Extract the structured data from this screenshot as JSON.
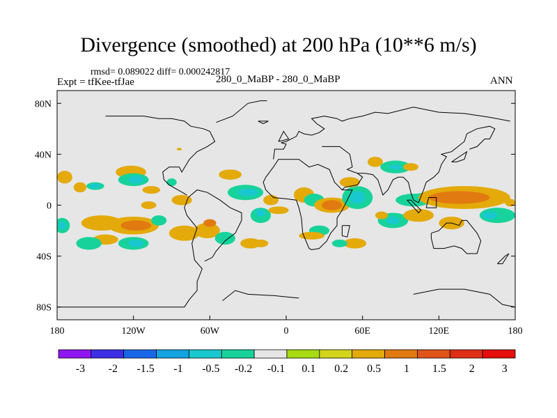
{
  "title": "Divergence (smoothed) at 200 hPa (10**6 m/s)",
  "stats": "rmsd= 0.089022  diff= 0.000242817",
  "expt": "Expt = tfKee-tfJae",
  "case": "280_0_MaBP - 280_0_MaBP",
  "season": "ANN",
  "colors": {
    "land_background": "#e6e6e6",
    "coastline": "#000000"
  },
  "chart_data": {
    "type": "heatmap",
    "projection": "cylindrical equidistant",
    "field": "divergence difference at 200 hPa",
    "xlim": [
      -180,
      180
    ],
    "ylim": [
      -90,
      90
    ],
    "x_ticks": [
      {
        "value": -180,
        "label": "180"
      },
      {
        "value": -120,
        "label": "120W"
      },
      {
        "value": -60,
        "label": "60W"
      },
      {
        "value": 0,
        "label": "0"
      },
      {
        "value": 60,
        "label": "60E"
      },
      {
        "value": 120,
        "label": "120E"
      },
      {
        "value": 180,
        "label": "180"
      }
    ],
    "y_ticks": [
      {
        "value": 80,
        "label": "80N"
      },
      {
        "value": 40,
        "label": "40N"
      },
      {
        "value": 0,
        "label": "0"
      },
      {
        "value": -40,
        "label": "40S"
      },
      {
        "value": -80,
        "label": "80S"
      }
    ],
    "colorbar": {
      "colors": [
        "#8f16f0",
        "#3e2ee6",
        "#1a66e8",
        "#13a3e0",
        "#19c8cf",
        "#17d39b",
        "#e6e6e6",
        "#a7db14",
        "#d4d41d",
        "#e3aa0a",
        "#e17a10",
        "#e0541a",
        "#df2f17",
        "#e60d0d"
      ],
      "labels": [
        "-3",
        "-2",
        "-1.5",
        "-1",
        "-0.5",
        "-0.2",
        "-0.1",
        "0.1",
        "0.2",
        "0.5",
        "1",
        "1.5",
        "2",
        "3"
      ]
    },
    "coastline": [
      [
        [
          -180,
          -80
        ],
        [
          -80,
          -80
        ],
        [
          -76,
          -74
        ],
        [
          -70,
          -67
        ],
        [
          -70,
          -60
        ],
        [
          -66,
          -50
        ],
        [
          -72,
          -43
        ],
        [
          -74,
          -30
        ],
        [
          -70,
          -18
        ],
        [
          -78,
          -8
        ],
        [
          -80,
          -2
        ],
        [
          -77,
          6
        ],
        [
          -70,
          12
        ],
        [
          -62,
          10
        ],
        [
          -52,
          4
        ],
        [
          -44,
          -2
        ],
        [
          -35,
          -6
        ],
        [
          -35,
          -12
        ],
        [
          -40,
          -22
        ],
        [
          -48,
          -28
        ],
        [
          -55,
          -36
        ],
        [
          -58,
          -41
        ],
        [
          -64,
          -44
        ]
      ],
      [
        [
          -78,
          8
        ],
        [
          -85,
          12
        ],
        [
          -92,
          16
        ],
        [
          -96,
          20
        ],
        [
          -97,
          26
        ],
        [
          -92,
          30
        ],
        [
          -84,
          30
        ],
        [
          -82,
          26
        ],
        [
          -76,
          36
        ],
        [
          -70,
          42
        ],
        [
          -62,
          46
        ],
        [
          -56,
          50
        ],
        [
          -60,
          58
        ],
        [
          -65,
          60
        ],
        [
          -75,
          62
        ],
        [
          -80,
          66
        ],
        [
          -90,
          68
        ],
        [
          -100,
          68
        ],
        [
          -112,
          70
        ],
        [
          -132,
          70
        ],
        [
          -142,
          70
        ]
      ],
      [
        [
          -50,
          -75
        ],
        [
          -40,
          -67
        ],
        [
          -30,
          -70
        ],
        [
          -10,
          -71
        ],
        [
          0,
          -72
        ],
        [
          10,
          -73
        ]
      ],
      [
        [
          -55,
          65
        ],
        [
          -42,
          70
        ],
        [
          -30,
          80
        ],
        [
          -20,
          82
        ],
        [
          -15,
          82
        ]
      ],
      [
        [
          -18,
          18
        ],
        [
          -16,
          12
        ],
        [
          -10,
          6
        ],
        [
          0,
          5
        ],
        [
          8,
          4
        ],
        [
          10,
          -2
        ],
        [
          12,
          -10
        ],
        [
          13,
          -22
        ],
        [
          18,
          -34
        ],
        [
          20,
          -35
        ],
        [
          26,
          -34
        ],
        [
          32,
          -28
        ],
        [
          35,
          -22
        ],
        [
          40,
          -16
        ],
        [
          40,
          -10
        ],
        [
          44,
          -4
        ],
        [
          48,
          4
        ],
        [
          52,
          12
        ],
        [
          44,
          12
        ],
        [
          38,
          18
        ],
        [
          34,
          28
        ],
        [
          25,
          32
        ],
        [
          18,
          30
        ],
        [
          10,
          36
        ],
        [
          0,
          36
        ],
        [
          -6,
          36
        ],
        [
          -10,
          30
        ],
        [
          -16,
          22
        ],
        [
          -18,
          18
        ]
      ],
      [
        [
          -10,
          36
        ],
        [
          -9,
          44
        ],
        [
          -2,
          44
        ],
        [
          0,
          48
        ],
        [
          -4,
          49
        ],
        [
          0,
          50
        ],
        [
          8,
          54
        ],
        [
          10,
          58
        ],
        [
          14,
          56
        ],
        [
          20,
          55
        ],
        [
          26,
          57
        ],
        [
          30,
          60
        ],
        [
          24,
          64
        ],
        [
          20,
          68
        ],
        [
          30,
          70
        ],
        [
          40,
          68
        ],
        [
          44,
          66
        ],
        [
          50,
          68
        ],
        [
          60,
          70
        ],
        [
          70,
          73
        ],
        [
          80,
          72
        ],
        [
          100,
          77
        ],
        [
          120,
          73
        ],
        [
          140,
          72
        ],
        [
          160,
          69
        ],
        [
          176,
          66
        ]
      ],
      [
        [
          28,
          46
        ],
        [
          42,
          46
        ],
        [
          50,
          40
        ],
        [
          52,
          30
        ],
        [
          48,
          28
        ],
        [
          56,
          25
        ],
        [
          60,
          22
        ],
        [
          56,
          16
        ],
        [
          46,
          14
        ],
        [
          44,
          12
        ]
      ],
      [
        [
          56,
          25
        ],
        [
          62,
          25
        ],
        [
          68,
          24
        ],
        [
          72,
          20
        ],
        [
          74,
          14
        ],
        [
          76,
          8
        ],
        [
          80,
          12
        ],
        [
          84,
          20
        ],
        [
          88,
          22
        ],
        [
          92,
          22
        ],
        [
          96,
          18
        ],
        [
          98,
          10
        ],
        [
          100,
          4
        ],
        [
          104,
          2
        ],
        [
          108,
          12
        ],
        [
          110,
          18
        ],
        [
          116,
          22
        ],
        [
          120,
          26
        ],
        [
          122,
          32
        ],
        [
          126,
          38
        ],
        [
          122,
          40
        ],
        [
          130,
          42
        ],
        [
          140,
          50
        ],
        [
          142,
          56
        ],
        [
          150,
          60
        ],
        [
          160,
          62
        ],
        [
          164,
          60
        ],
        [
          162,
          56
        ],
        [
          160,
          52
        ],
        [
          156,
          52
        ],
        [
          150,
          46
        ],
        [
          144,
          44
        ]
      ],
      [
        [
          130,
          34
        ],
        [
          134,
          34
        ],
        [
          140,
          36
        ],
        [
          142,
          42
        ],
        [
          136,
          38
        ],
        [
          130,
          34
        ]
      ],
      [
        [
          114,
          -22
        ],
        [
          114,
          -26
        ],
        [
          116,
          -34
        ],
        [
          124,
          -34
        ],
        [
          132,
          -32
        ],
        [
          138,
          -34
        ],
        [
          142,
          -38
        ],
        [
          150,
          -38
        ],
        [
          153,
          -28
        ],
        [
          150,
          -22
        ],
        [
          142,
          -12
        ],
        [
          138,
          -12
        ],
        [
          136,
          -16
        ],
        [
          130,
          -14
        ],
        [
          126,
          -14
        ],
        [
          120,
          -20
        ],
        [
          114,
          -22
        ]
      ],
      [
        [
          44,
          -16
        ],
        [
          50,
          -16
        ],
        [
          48,
          -25
        ],
        [
          44,
          -24
        ],
        [
          44,
          -16
        ]
      ],
      [
        [
          95,
          4
        ],
        [
          104,
          -6
        ],
        [
          106,
          -4
        ],
        [
          98,
          4
        ],
        [
          95,
          4
        ]
      ],
      [
        [
          110,
          -2
        ],
        [
          118,
          -2
        ],
        [
          118,
          6
        ],
        [
          112,
          6
        ],
        [
          110,
          -2
        ]
      ],
      [
        [
          166,
          -46
        ],
        [
          172,
          -40
        ],
        [
          175,
          -38
        ],
        [
          170,
          -46
        ],
        [
          166,
          -46
        ]
      ],
      [
        [
          100,
          -70
        ],
        [
          120,
          -66
        ],
        [
          140,
          -66
        ],
        [
          160,
          -70
        ],
        [
          170,
          -78
        ],
        [
          180,
          -80
        ]
      ],
      [
        [
          -18,
          64
        ],
        [
          -14,
          66
        ],
        [
          -22,
          66
        ],
        [
          -18,
          64
        ]
      ],
      [
        [
          -6,
          50
        ],
        [
          2,
          52
        ],
        [
          -2,
          58
        ],
        [
          -6,
          50
        ]
      ]
    ],
    "anomaly_patches": [
      {
        "cx": -174,
        "cy": 22,
        "rx": 6,
        "ry": 5,
        "level": 0.2
      },
      {
        "cx": -162,
        "cy": 14,
        "rx": 5,
        "ry": 4,
        "level": 0.2
      },
      {
        "cx": -150,
        "cy": 15,
        "rx": 7,
        "ry": 3,
        "level": -0.2
      },
      {
        "cx": -150,
        "cy": 15,
        "rx": 4,
        "ry": 2,
        "level": -0.5
      },
      {
        "cx": -122,
        "cy": 26,
        "rx": 12,
        "ry": 5,
        "level": 0.2
      },
      {
        "cx": -120,
        "cy": 20,
        "rx": 12,
        "ry": 5,
        "level": -0.2
      },
      {
        "cx": -118,
        "cy": 20,
        "rx": 6,
        "ry": 3,
        "level": -0.5
      },
      {
        "cx": -106,
        "cy": 12,
        "rx": 7,
        "ry": 3,
        "level": 0.2
      },
      {
        "cx": -145,
        "cy": -14,
        "rx": 16,
        "ry": 6,
        "level": 0.2
      },
      {
        "cx": -120,
        "cy": -16,
        "rx": 20,
        "ry": 7,
        "level": 0.2
      },
      {
        "cx": -118,
        "cy": -16,
        "rx": 12,
        "ry": 4,
        "level": 0.5
      },
      {
        "cx": -176,
        "cy": -16,
        "rx": 6,
        "ry": 6,
        "level": -0.2
      },
      {
        "cx": -176,
        "cy": -16,
        "rx": 3,
        "ry": 3,
        "level": -0.5
      },
      {
        "cx": -142,
        "cy": -27,
        "rx": 10,
        "ry": 4,
        "level": 0.2
      },
      {
        "cx": -155,
        "cy": -30,
        "rx": 10,
        "ry": 5,
        "level": -0.2
      },
      {
        "cx": -120,
        "cy": -30,
        "rx": 12,
        "ry": 5,
        "level": -0.2
      },
      {
        "cx": -118,
        "cy": -30,
        "rx": 6,
        "ry": 3,
        "level": -0.5
      },
      {
        "cx": -100,
        "cy": -12,
        "rx": 6,
        "ry": 4,
        "level": -0.2
      },
      {
        "cx": -108,
        "cy": 0,
        "rx": 6,
        "ry": 3,
        "level": 0.2
      },
      {
        "cx": -80,
        "cy": -22,
        "rx": 12,
        "ry": 6,
        "level": 0.2
      },
      {
        "cx": -62,
        "cy": -20,
        "rx": 10,
        "ry": 6,
        "level": 0.2
      },
      {
        "cx": -60,
        "cy": -14,
        "rx": 5,
        "ry": 3,
        "level": 0.5
      },
      {
        "cx": -48,
        "cy": -26,
        "rx": 8,
        "ry": 5,
        "level": -0.2
      },
      {
        "cx": -82,
        "cy": 4,
        "rx": 8,
        "ry": 4,
        "level": 0.2
      },
      {
        "cx": -90,
        "cy": 18,
        "rx": 4,
        "ry": 3,
        "level": -0.2
      },
      {
        "cx": -44,
        "cy": 24,
        "rx": 9,
        "ry": 4,
        "level": 0.2
      },
      {
        "cx": -32,
        "cy": 10,
        "rx": 14,
        "ry": 6,
        "level": -0.2
      },
      {
        "cx": -30,
        "cy": 10,
        "rx": 8,
        "ry": 3,
        "level": -0.5
      },
      {
        "cx": -20,
        "cy": -8,
        "rx": 8,
        "ry": 6,
        "level": -0.2
      },
      {
        "cx": -20,
        "cy": -6,
        "rx": 4,
        "ry": 3,
        "level": -0.5
      },
      {
        "cx": -12,
        "cy": 4,
        "rx": 6,
        "ry": 4,
        "level": 0.2
      },
      {
        "cx": -20,
        "cy": -30,
        "rx": 6,
        "ry": 3,
        "level": 0.2
      },
      {
        "cx": -6,
        "cy": -4,
        "rx": 8,
        "ry": 3,
        "level": 0.2
      },
      {
        "cx": -28,
        "cy": -30,
        "rx": 8,
        "ry": 4,
        "level": 0.2
      },
      {
        "cx": 14,
        "cy": 8,
        "rx": 8,
        "ry": 6,
        "level": 0.2
      },
      {
        "cx": 22,
        "cy": 4,
        "rx": 8,
        "ry": 5,
        "level": -0.2
      },
      {
        "cx": 36,
        "cy": 0,
        "rx": 14,
        "ry": 6,
        "level": 0.2
      },
      {
        "cx": 36,
        "cy": 0,
        "rx": 8,
        "ry": 4,
        "level": 0.5
      },
      {
        "cx": 56,
        "cy": 6,
        "rx": 12,
        "ry": 9,
        "level": -0.2
      },
      {
        "cx": 56,
        "cy": 6,
        "rx": 6,
        "ry": 5,
        "level": -0.5
      },
      {
        "cx": 50,
        "cy": 18,
        "rx": 8,
        "ry": 4,
        "level": 0.2
      },
      {
        "cx": 26,
        "cy": -20,
        "rx": 8,
        "ry": 4,
        "level": -0.2
      },
      {
        "cx": 20,
        "cy": -24,
        "rx": 10,
        "ry": 3,
        "level": 0.2
      },
      {
        "cx": 54,
        "cy": -30,
        "rx": 9,
        "ry": 4,
        "level": 0.2
      },
      {
        "cx": 42,
        "cy": -30,
        "rx": 6,
        "ry": 3,
        "level": -0.2
      },
      {
        "cx": 84,
        "cy": -12,
        "rx": 12,
        "ry": 6,
        "level": -0.2
      },
      {
        "cx": 84,
        "cy": -12,
        "rx": 5,
        "ry": 3,
        "level": -0.5
      },
      {
        "cx": 75,
        "cy": -8,
        "rx": 5,
        "ry": 3,
        "level": 0.2
      },
      {
        "cx": 104,
        "cy": -8,
        "rx": 12,
        "ry": 5,
        "level": 0.2
      },
      {
        "cx": 70,
        "cy": 34,
        "rx": 6,
        "ry": 4,
        "level": 0.2
      },
      {
        "cx": 86,
        "cy": 30,
        "rx": 12,
        "ry": 5,
        "level": -0.2
      },
      {
        "cx": 86,
        "cy": 30,
        "rx": 5,
        "ry": 2,
        "level": -0.5
      },
      {
        "cx": 98,
        "cy": 30,
        "rx": 6,
        "ry": 3,
        "level": 0.2
      },
      {
        "cx": 100,
        "cy": 4,
        "rx": 14,
        "ry": 5,
        "level": -0.2
      },
      {
        "cx": 116,
        "cy": 6,
        "rx": 20,
        "ry": 4,
        "level": -0.2
      },
      {
        "cx": 140,
        "cy": 6,
        "rx": 36,
        "ry": 9,
        "level": 0.2
      },
      {
        "cx": 136,
        "cy": 6,
        "rx": 24,
        "ry": 5,
        "level": 0.5
      },
      {
        "cx": 166,
        "cy": -8,
        "rx": 14,
        "ry": 6,
        "level": -0.2
      },
      {
        "cx": 160,
        "cy": -8,
        "rx": 6,
        "ry": 3,
        "level": -0.5
      },
      {
        "cx": 130,
        "cy": -14,
        "rx": 10,
        "ry": 5,
        "level": 0.2
      },
      {
        "cx": 176,
        "cy": 2,
        "rx": 4,
        "ry": 3,
        "level": 0.2
      },
      {
        "cx": -84,
        "cy": 44,
        "rx": 2,
        "ry": 1,
        "level": 0.2
      }
    ]
  }
}
